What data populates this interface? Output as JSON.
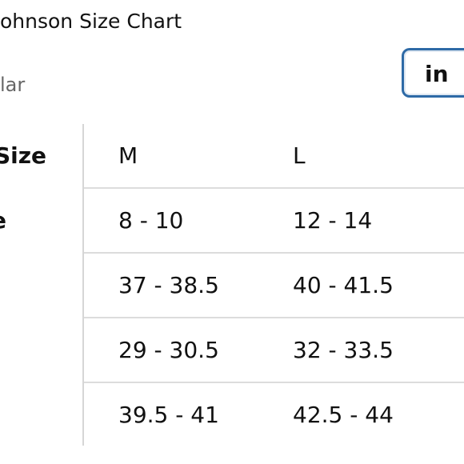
{
  "header": {
    "title": "ohnson Size Chart",
    "subtitle": "lar",
    "unit_button": "in"
  },
  "table": {
    "header_label": "Size",
    "columns": [
      "M",
      "L"
    ],
    "rows": [
      {
        "label": "e",
        "cells": [
          "8 - 10",
          "12 - 14"
        ]
      },
      {
        "cells": [
          "37 - 38.5",
          "40 - 41.5"
        ]
      },
      {
        "cells": [
          "29 - 30.5",
          "32 - 33.5"
        ]
      },
      {
        "cells": [
          "39.5 - 41",
          "42.5 - 44"
        ]
      }
    ]
  }
}
